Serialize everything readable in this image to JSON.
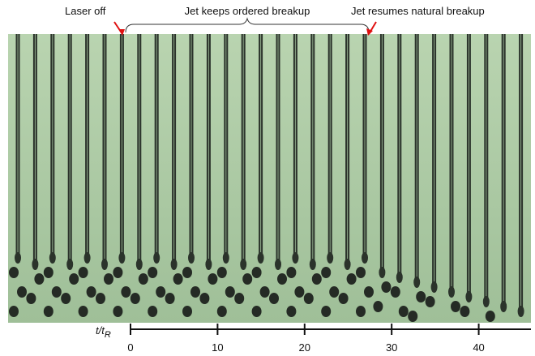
{
  "annotations": {
    "laser_off": "Laser off",
    "ordered": "Jet keeps ordered breakup",
    "natural": "Jet resumes natural breakup"
  },
  "axis": {
    "label": {
      "main": "t/t",
      "sub": "R"
    },
    "lim": [
      0,
      46
    ],
    "ticks": [
      0,
      10,
      20,
      30,
      40
    ]
  }
}
